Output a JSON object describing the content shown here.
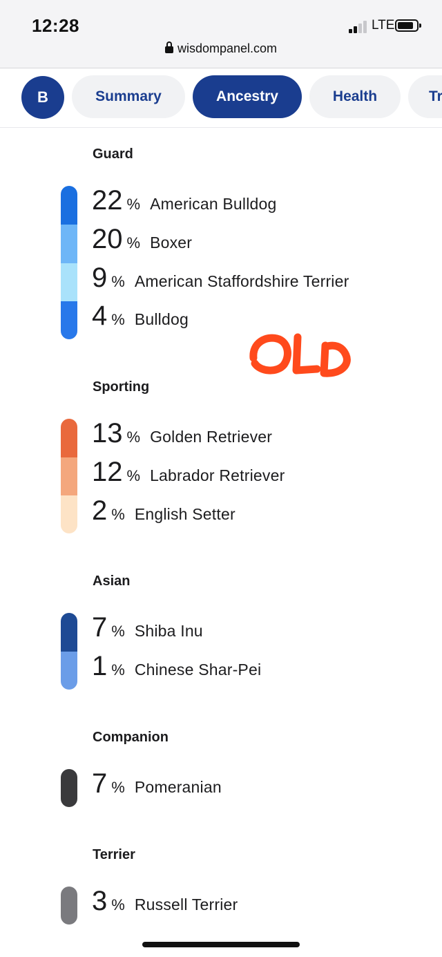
{
  "status_bar": {
    "time": "12:28",
    "network": "LTE"
  },
  "browser": {
    "url": "wisdompanel.com"
  },
  "nav": {
    "avatar_initial": "B",
    "tabs": [
      {
        "label": "Summary",
        "active": false
      },
      {
        "label": "Ancestry",
        "active": true
      },
      {
        "label": "Health",
        "active": false
      },
      {
        "label": "Tr",
        "active": false
      }
    ]
  },
  "annotation": {
    "handwritten_text": "OLD",
    "color": "#ff4a1c"
  },
  "groups": [
    {
      "title": "Guard",
      "breeds": [
        {
          "percent": "22",
          "symbol": "%",
          "name": "American Bulldog",
          "color": "#1a6fe0"
        },
        {
          "percent": "20",
          "symbol": "%",
          "name": "Boxer",
          "color": "#6eb6f7"
        },
        {
          "percent": "9",
          "symbol": "%",
          "name": "American Staffordshire Terrier",
          "color": "#a9e2fb"
        },
        {
          "percent": "4",
          "symbol": "%",
          "name": "Bulldog",
          "color": "#2878ea"
        }
      ]
    },
    {
      "title": "Sporting",
      "breeds": [
        {
          "percent": "13",
          "symbol": "%",
          "name": "Golden Retriever",
          "color": "#e9693d"
        },
        {
          "percent": "12",
          "symbol": "%",
          "name": "Labrador Retriever",
          "color": "#f4a77d"
        },
        {
          "percent": "2",
          "symbol": "%",
          "name": "English Setter",
          "color": "#fde3c6"
        }
      ]
    },
    {
      "title": "Asian",
      "breeds": [
        {
          "percent": "7",
          "symbol": "%",
          "name": "Shiba Inu",
          "color": "#1e4a94"
        },
        {
          "percent": "1",
          "symbol": "%",
          "name": "Chinese Shar-Pei",
          "color": "#6b9de8"
        }
      ]
    },
    {
      "title": "Companion",
      "breeds": [
        {
          "percent": "7",
          "symbol": "%",
          "name": "Pomeranian",
          "color": "#3a3a3c"
        }
      ]
    },
    {
      "title": "Terrier",
      "breeds": [
        {
          "percent": "3",
          "symbol": "%",
          "name": "Russell Terrier",
          "color": "#7a7a7e"
        }
      ]
    }
  ]
}
